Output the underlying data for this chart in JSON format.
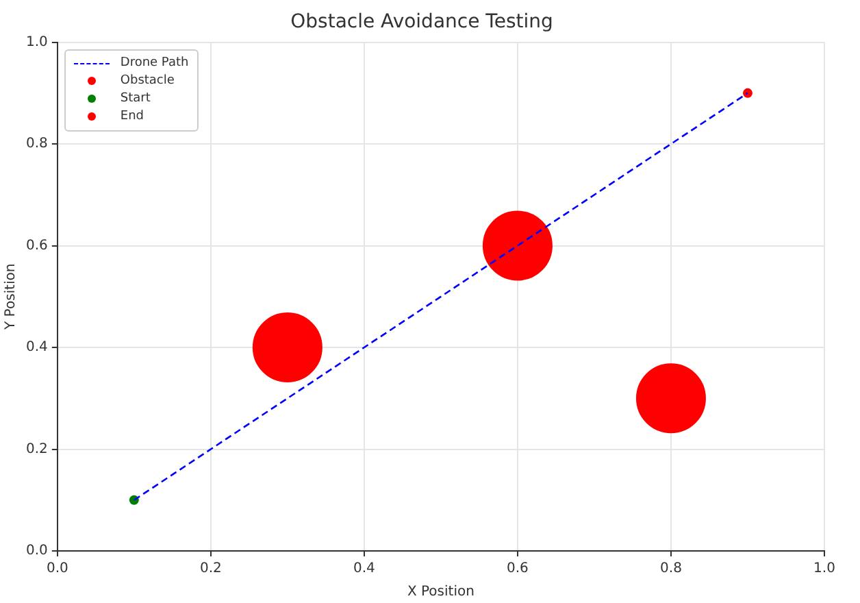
{
  "chart_data": {
    "type": "line",
    "title": "Obstacle Avoidance Testing",
    "xlabel": "X Position",
    "ylabel": "Y Position",
    "xlim": [
      0,
      1
    ],
    "ylim": [
      0,
      1
    ],
    "xticks": [
      {
        "value": 0,
        "label": "0.0"
      },
      0.2,
      0.4,
      0.6,
      0.8,
      {
        "value": 1,
        "label": "1.0"
      }
    ],
    "yticks": [
      {
        "value": 0,
        "label": "0.0"
      },
      0.2,
      0.4,
      0.6,
      0.8,
      {
        "value": 1,
        "label": "1.0"
      }
    ],
    "grid": true,
    "legend": "top left",
    "series": [
      {
        "name": "Drone Path",
        "color": "#0000ff",
        "line_style": "dashed",
        "marker": "none",
        "x": [
          0.1,
          0.9
        ],
        "values": [
          0.1,
          0.9
        ]
      },
      {
        "name": "Obstacle",
        "type": "bubble",
        "color": "#ff0000",
        "x": [
          0.3,
          0.6,
          0.8
        ],
        "values": [
          0.4,
          0.6,
          0.3
        ],
        "sizes": [
          1,
          1,
          1
        ]
      },
      {
        "name": "Start",
        "type": "scatter",
        "color": "#008000",
        "x": [
          0.1
        ],
        "values": [
          0.1
        ]
      },
      {
        "name": "End",
        "type": "scatter",
        "color": "#ff0000",
        "x": [
          0.9
        ],
        "values": [
          0.9
        ]
      }
    ]
  }
}
